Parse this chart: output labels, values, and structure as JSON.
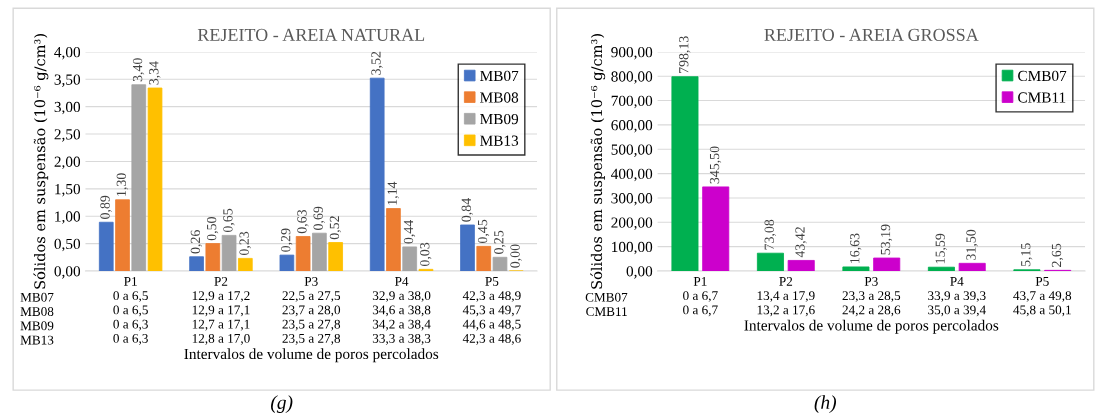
{
  "chart_data": [
    {
      "type": "bar",
      "title": "REJEITO - AREIA NATURAL",
      "ylabel": "Sólidos em suspensão (10⁻⁶ g/cm³)",
      "xlabel": "Intervalos de volume de poros percolados",
      "categories": [
        "P1\n0 a 6,5\n0 a 6,5\n0 a 6,3\n0 a 6,3",
        "P2\n12,9 a 17,2\n12,9 a 17,1\n12,7 a 17,1\n12,8 a 17,0",
        "P3\n22,5 a 27,5\n23,7 a 28,0\n23,5 a 27,8\n23,5 a 27,8",
        "P4\n32,9 a 38,0\n34,6 a 38,8\n34,2 a 38,4\n33,3 a 38,3",
        "P5\n42,3 a 48,9\n45,3 a 49,7\n44,6 a 48,5\n42,3 a 48,6"
      ],
      "series": [
        {
          "name": "MB07",
          "color": "#4472c4",
          "values": [
            0.89,
            0.26,
            0.29,
            3.52,
            0.84
          ],
          "value_labels": [
            "0,89",
            "0,26",
            "0,29",
            "3,52",
            "0,84"
          ]
        },
        {
          "name": "MB08",
          "color": "#ed7d31",
          "values": [
            1.3,
            0.5,
            0.63,
            1.14,
            0.45
          ],
          "value_labels": [
            "1,30",
            "0,50",
            "0,63",
            "1,14",
            "0,45"
          ]
        },
        {
          "name": "MB09",
          "color": "#a5a5a5",
          "values": [
            3.4,
            0.65,
            0.69,
            0.44,
            0.25
          ],
          "value_labels": [
            "3,40",
            "0,65",
            "0,69",
            "0,44",
            "0,25"
          ]
        },
        {
          "name": "MB13",
          "color": "#ffc000",
          "values": [
            3.34,
            0.23,
            0.52,
            0.03,
            0.0
          ],
          "value_labels": [
            "3,34",
            "0,23",
            "0,52",
            "0,03",
            "0,00"
          ]
        }
      ],
      "ylim": [
        0,
        4
      ],
      "yticks": [
        {
          "value": 0,
          "label": "0,00"
        },
        {
          "value": 0.5,
          "label": "0,50"
        },
        {
          "value": 1,
          "label": "1,00"
        },
        {
          "value": 1.5,
          "label": "1,50"
        },
        {
          "value": 2,
          "label": "2,00"
        },
        {
          "value": 2.5,
          "label": "2,50"
        },
        {
          "value": 3,
          "label": "3,00"
        },
        {
          "value": 3.5,
          "label": "3,50"
        },
        {
          "value": 4,
          "label": "4,00"
        }
      ],
      "grid": "y",
      "legend": "top right",
      "annotations": [
        "MB07\nMB08\nMB09\nMB13",
        "(g)"
      ]
    },
    {
      "type": "bar",
      "title": "REJEITO - AREIA GROSSA",
      "ylabel": "Sólidos em suspensão (10⁻⁶ g/cm³)",
      "xlabel": "Intervalos de volume de poros percolados",
      "categories": [
        "P1\n0 a 6,7\n0 a 6,7",
        "P2\n13,4 a 17,9\n13,2 a 17,6",
        "P3\n23,3 a 28,5\n24,2 a 28,6",
        "P4\n33,9 a 39,3\n35,0 a 39,4",
        "P5\n43,7 a 49,8\n45,8 a 50,1"
      ],
      "series": [
        {
          "name": "CMB07",
          "color": "#00b050",
          "values": [
            798.13,
            73.08,
            16.63,
            15.59,
            5.15
          ],
          "value_labels": [
            "798,13",
            "73,08",
            "16,63",
            "15,59",
            "5,15"
          ]
        },
        {
          "name": "CMB11",
          "color": "#cc00cc",
          "values": [
            345.5,
            43.42,
            53.19,
            31.5,
            2.65
          ],
          "value_labels": [
            "345,50",
            "43,42",
            "53,19",
            "31,50",
            "2,65"
          ]
        }
      ],
      "ylim": [
        0,
        900
      ],
      "yticks": [
        {
          "value": 0,
          "label": "0,00"
        },
        {
          "value": 100,
          "label": "100,00"
        },
        {
          "value": 200,
          "label": "200,00"
        },
        {
          "value": 300,
          "label": "300,00"
        },
        {
          "value": 400,
          "label": "400,00"
        },
        {
          "value": 500,
          "label": "500,00"
        },
        {
          "value": 600,
          "label": "600,00"
        },
        {
          "value": 700,
          "label": "700,00"
        },
        {
          "value": 800,
          "label": "800,00"
        },
        {
          "value": 900,
          "label": "900,00"
        }
      ],
      "grid": "y",
      "legend": "top right",
      "annotations": [
        "CMB07\nCMB11",
        "(h)"
      ]
    }
  ]
}
